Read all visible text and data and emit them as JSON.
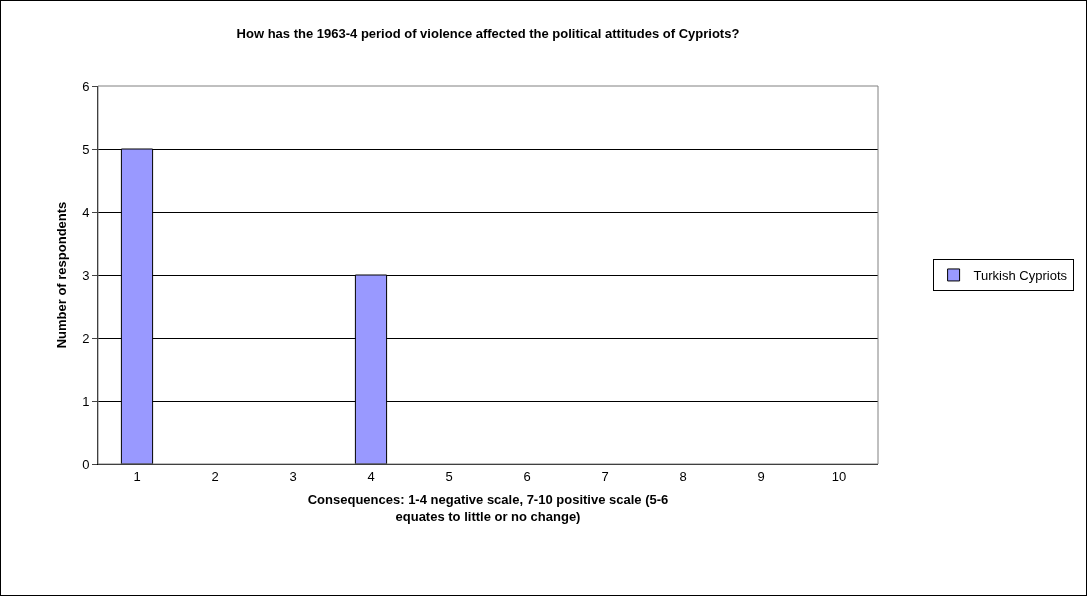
{
  "chart_data": {
    "type": "bar",
    "title": "How has the 1963-4 period of violence affected the political attitudes of Cypriots?",
    "xlabel": "Consequences: 1-4 negative scale, 7-10 positive scale (5-6 equates to little or no change)",
    "ylabel": "Number of respondents",
    "categories": [
      "1",
      "2",
      "3",
      "4",
      "5",
      "6",
      "7",
      "8",
      "9",
      "10"
    ],
    "series": [
      {
        "name": "Turkish Cypriots",
        "color": "#9999ff",
        "values": [
          5,
          0,
          0,
          3,
          0,
          0,
          0,
          0,
          0,
          0
        ]
      }
    ],
    "ylim": [
      0,
      6
    ],
    "yticks": [
      0,
      1,
      2,
      3,
      4,
      5,
      6
    ],
    "grid": "y",
    "legend": "right"
  }
}
